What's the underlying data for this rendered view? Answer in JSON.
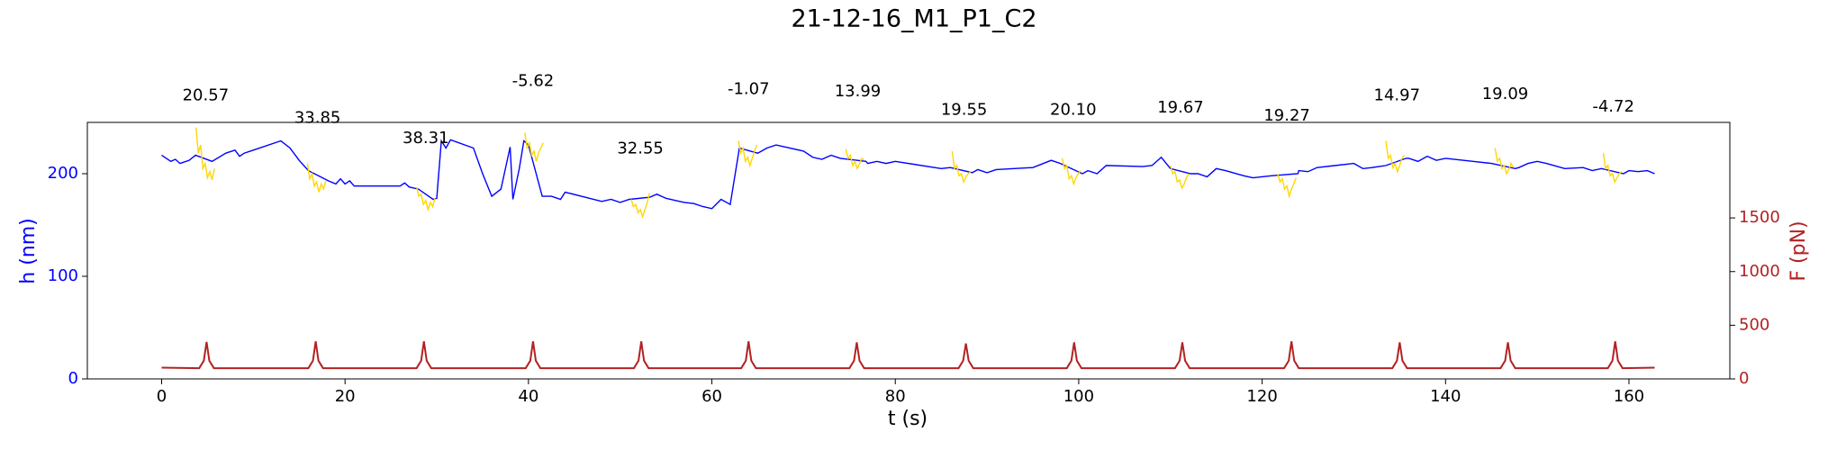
{
  "chart_data": {
    "type": "line",
    "title": "21-12-16_M1_P1_C2",
    "xlabel": "t (s)",
    "ylabel": "h (nm)",
    "y2label": "F (pN)",
    "y_color": "#0000ff",
    "y2_color": "#b22222",
    "xlim": [
      -8.1,
      171
    ],
    "ylim": [
      0,
      250
    ],
    "y2lim": [
      0,
      2390
    ],
    "xticks": [
      0,
      20,
      40,
      60,
      80,
      100,
      120,
      140,
      160
    ],
    "yticks": [
      0,
      100,
      200
    ],
    "y2ticks": [
      0,
      500,
      1000,
      1500
    ],
    "series": [
      {
        "color": "#0000ff",
        "axis": "y",
        "x": [
          0,
          1,
          1.5,
          2,
          3,
          3.7,
          5.5,
          7,
          8,
          8.5,
          9,
          10,
          13,
          14,
          15,
          16,
          18.2,
          19,
          19.5,
          20,
          20.5,
          21,
          26,
          26.5,
          27,
          28,
          29.6,
          30,
          30.5,
          31,
          31.5,
          34,
          35,
          36,
          37,
          38,
          38.3,
          39,
          39.5,
          40,
          41.5,
          42.5,
          43.5,
          44,
          48,
          49,
          50,
          51,
          53.2,
          54,
          55,
          56,
          57,
          58,
          59,
          60,
          61,
          62,
          63,
          65,
          66,
          67,
          70,
          71,
          72,
          73,
          74,
          76.8,
          77,
          78,
          79,
          80,
          85,
          86,
          88.4,
          89,
          90,
          91,
          95,
          97,
          98,
          100.4,
          101,
          102,
          103,
          107,
          108,
          109,
          110,
          112.2,
          113,
          114,
          115,
          116,
          118,
          119,
          120,
          121,
          123.9,
          124,
          125,
          126,
          128,
          130,
          131,
          132,
          133.5,
          135.7,
          136,
          137,
          138,
          139,
          140,
          143,
          145,
          147.6,
          148,
          149,
          150,
          151,
          153,
          155,
          156,
          157,
          159.4,
          160,
          161,
          162,
          162.8
        ],
        "values": [
          218,
          212,
          214,
          210,
          213,
          218,
          212,
          220,
          223,
          217,
          220,
          223,
          232,
          225,
          213,
          203,
          193,
          190,
          195,
          190,
          193,
          188,
          188,
          191,
          187,
          185,
          175,
          176,
          232,
          225,
          233,
          225,
          200,
          178,
          185,
          226,
          175,
          205,
          232,
          228,
          178,
          178,
          175,
          182,
          173,
          175,
          172,
          175,
          177,
          180,
          176,
          174,
          172,
          171,
          168,
          166,
          175,
          170,
          225,
          220,
          225,
          228,
          222,
          216,
          214,
          218,
          215,
          212,
          210,
          212,
          210,
          212,
          205,
          206,
          201,
          204,
          201,
          204,
          206,
          213,
          210,
          200,
          203,
          200,
          208,
          207,
          208,
          216,
          205,
          200,
          200,
          197,
          205,
          203,
          198,
          196,
          197,
          198,
          200,
          203,
          202,
          206,
          208,
          210,
          205,
          206,
          208,
          215,
          215,
          212,
          217,
          213,
          215,
          212,
          210,
          205,
          206,
          210,
          212,
          210,
          205,
          206,
          203,
          205,
          200,
          203,
          202,
          203,
          200
        ]
      },
      {
        "color": "#ffd700",
        "axis": "y",
        "x": [
          3.75,
          4,
          4.25,
          4.5,
          4.75,
          5,
          5.25,
          5.5,
          5.75,
          null,
          15.9,
          16.15,
          16.4,
          16.65,
          16.9,
          17.15,
          17.4,
          17.65,
          17.9,
          null,
          27.8,
          28.05,
          28.3,
          28.55,
          28.8,
          29.05,
          29.3,
          29.55,
          29.8,
          null,
          39.6,
          39.85,
          40.1,
          40.35,
          40.6,
          40.85,
          41.1,
          41.35,
          41.6,
          null,
          51.2,
          51.45,
          51.7,
          51.95,
          52.2,
          52.45,
          52.7,
          52.95,
          53.2,
          null,
          62.9,
          63.15,
          63.4,
          63.65,
          63.9,
          64.15,
          64.4,
          64.65,
          64.9,
          null,
          74.6,
          74.85,
          75.1,
          75.35,
          75.6,
          75.85,
          76.1,
          76.35,
          76.6,
          null,
          86.2,
          86.45,
          86.7,
          86.95,
          87.2,
          87.45,
          87.7,
          87.95,
          88.2,
          null,
          98.2,
          98.45,
          98.7,
          98.95,
          99.2,
          99.45,
          99.7,
          99.95,
          100.2,
          null,
          110,
          110.25,
          110.5,
          110.75,
          111,
          111.25,
          111.5,
          111.75,
          112,
          null,
          121.7,
          121.95,
          122.2,
          122.45,
          122.7,
          122.95,
          123.2,
          123.45,
          123.7,
          null,
          133.5,
          133.75,
          134,
          134.25,
          134.5,
          134.75,
          135,
          135.25,
          135.5,
          null,
          145.4,
          145.65,
          145.9,
          146.15,
          146.4,
          146.65,
          146.9,
          147.15,
          147.4,
          null,
          157.2,
          157.45,
          157.7,
          157.95,
          158.2,
          158.45,
          158.7,
          158.95,
          159.2
        ],
        "values": [
          245,
          220,
          228,
          205,
          210,
          196,
          202,
          194,
          205,
          null,
          210,
          195,
          200,
          188,
          192,
          182,
          190,
          185,
          193,
          null,
          187,
          178,
          180,
          170,
          174,
          165,
          172,
          168,
          176,
          null,
          240,
          225,
          230,
          218,
          222,
          212,
          220,
          225,
          230,
          null,
          175,
          168,
          170,
          162,
          165,
          158,
          165,
          172,
          181,
          null,
          232,
          220,
          225,
          212,
          216,
          208,
          215,
          222,
          228,
          null,
          224,
          215,
          218,
          208,
          212,
          205,
          210,
          215,
          213,
          null,
          222,
          205,
          208,
          198,
          200,
          192,
          197,
          200,
          202,
          null,
          215,
          205,
          208,
          195,
          198,
          190,
          196,
          200,
          203,
          null,
          208,
          200,
          202,
          192,
          194,
          186,
          190,
          196,
          200,
          null,
          200,
          192,
          195,
          185,
          188,
          178,
          185,
          190,
          196,
          null,
          232,
          215,
          218,
          206,
          210,
          202,
          208,
          215,
          218,
          null,
          225,
          212,
          215,
          205,
          208,
          200,
          204,
          210,
          206,
          null,
          220,
          205,
          208,
          198,
          200,
          192,
          196,
          200,
          202
        ]
      },
      {
        "color": "#b22222",
        "axis": "y2",
        "x": [
          0,
          4.1,
          4.6,
          4.9,
          5.2,
          5.7,
          16,
          16.5,
          16.8,
          17.1,
          17.6,
          27.8,
          28.3,
          28.6,
          28.9,
          29.4,
          39.7,
          40.2,
          40.5,
          40.8,
          41.3,
          51.5,
          52,
          52.3,
          52.6,
          53.1,
          63.2,
          63.7,
          64,
          64.3,
          64.8,
          75,
          75.5,
          75.8,
          76.1,
          76.6,
          86.9,
          87.4,
          87.7,
          88,
          88.5,
          98.7,
          99.2,
          99.5,
          99.8,
          100.3,
          110.5,
          111,
          111.3,
          111.6,
          112.1,
          122.4,
          122.9,
          123.2,
          123.5,
          124,
          134.2,
          134.7,
          135,
          135.3,
          135.8,
          146,
          146.5,
          146.8,
          147.1,
          147.6,
          157.7,
          158.2,
          158.5,
          158.8,
          159.3,
          162.8
        ],
        "values": [
          105,
          100,
          170,
          345,
          170,
          100,
          100,
          170,
          350,
          170,
          100,
          100,
          170,
          350,
          170,
          100,
          100,
          170,
          350,
          170,
          100,
          100,
          170,
          350,
          170,
          100,
          100,
          170,
          350,
          170,
          100,
          100,
          170,
          340,
          170,
          100,
          100,
          170,
          330,
          170,
          100,
          100,
          170,
          340,
          170,
          100,
          100,
          170,
          340,
          170,
          100,
          100,
          170,
          350,
          170,
          100,
          100,
          170,
          340,
          170,
          100,
          100,
          170,
          340,
          170,
          100,
          100,
          170,
          350,
          170,
          100,
          105
        ]
      }
    ],
    "annotations": [
      {
        "text": "20.57",
        "x": 4.8,
        "y": 276
      },
      {
        "text": "33.85",
        "x": 17.0,
        "y": 254
      },
      {
        "text": "38.31",
        "x": 28.8,
        "y": 234
      },
      {
        "text": "-5.62",
        "x": 40.5,
        "y": 290
      },
      {
        "text": "32.55",
        "x": 52.2,
        "y": 224
      },
      {
        "text": "-1.07",
        "x": 64.0,
        "y": 282
      },
      {
        "text": "13.99",
        "x": 75.9,
        "y": 280
      },
      {
        "text": "19.55",
        "x": 87.5,
        "y": 262
      },
      {
        "text": "20.10",
        "x": 99.4,
        "y": 262
      },
      {
        "text": "19.67",
        "x": 111.1,
        "y": 264
      },
      {
        "text": "19.27",
        "x": 122.7,
        "y": 256
      },
      {
        "text": "14.97",
        "x": 134.7,
        "y": 276
      },
      {
        "text": "19.09",
        "x": 146.5,
        "y": 277
      },
      {
        "text": "-4.72",
        "x": 158.3,
        "y": 265
      }
    ]
  }
}
